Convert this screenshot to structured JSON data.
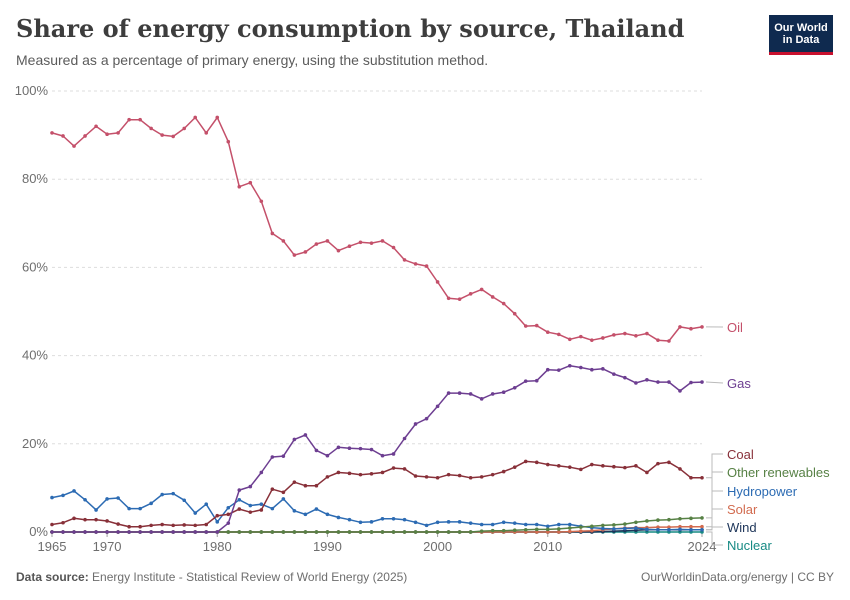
{
  "header": {
    "title": "Share of energy consumption by source, Thailand",
    "subtitle": "Measured as a percentage of primary energy, using the substitution method."
  },
  "logo": {
    "line1": "Our World",
    "line2": "in Data",
    "bg_color": "#0f2a4f",
    "accent_color": "#c8102e"
  },
  "footer": {
    "source_label": "Data source:",
    "source_text": "Energy Institute - Statistical Review of World Energy (2025)",
    "right_text": "OurWorldinData.org/energy | CC BY"
  },
  "chart_data": {
    "type": "line",
    "x_label": "",
    "y_label": "",
    "x_ticks": [
      "1965",
      "1970",
      "1980",
      "1990",
      "2000",
      "2010",
      "2024"
    ],
    "y_ticks": [
      "0%",
      "20%",
      "40%",
      "60%",
      "80%",
      "100%"
    ],
    "xlim": [
      1965,
      2024
    ],
    "ylim": [
      0,
      100
    ],
    "grid": "horizontal dashed",
    "legend": "inline labels at right end of lines",
    "x": [
      1965,
      1966,
      1967,
      1968,
      1969,
      1970,
      1971,
      1972,
      1973,
      1974,
      1975,
      1976,
      1977,
      1978,
      1979,
      1980,
      1981,
      1982,
      1983,
      1984,
      1985,
      1986,
      1987,
      1988,
      1989,
      1990,
      1991,
      1992,
      1993,
      1994,
      1995,
      1996,
      1997,
      1998,
      1999,
      2000,
      2001,
      2002,
      2003,
      2004,
      2005,
      2006,
      2007,
      2008,
      2009,
      2010,
      2011,
      2012,
      2013,
      2014,
      2015,
      2016,
      2017,
      2018,
      2019,
      2020,
      2021,
      2022,
      2023,
      2024
    ],
    "series": [
      {
        "name": "Oil",
        "color": "#c4506a",
        "values": [
          90.5,
          89.8,
          87.5,
          89.8,
          92.0,
          90.2,
          90.5,
          93.5,
          93.5,
          91.5,
          90.0,
          89.7,
          91.5,
          94.0,
          90.5,
          94.0,
          88.5,
          78.3,
          79.2,
          75.0,
          67.7,
          66.0,
          62.8,
          63.5,
          65.3,
          66.0,
          63.8,
          64.8,
          65.7,
          65.5,
          66.0,
          64.5,
          61.7,
          60.8,
          60.3,
          56.7,
          53.0,
          52.8,
          54.0,
          55.0,
          53.3,
          51.8,
          49.5,
          46.7,
          46.8,
          45.3,
          44.8,
          43.7,
          44.3,
          43.5,
          44.0,
          44.7,
          45.0,
          44.5,
          45.0,
          43.5,
          43.3,
          46.5,
          46.1,
          46.5
        ]
      },
      {
        "name": "Gas",
        "color": "#6d3e91",
        "values": [
          0,
          0,
          0,
          0,
          0,
          0,
          0,
          0,
          0,
          0,
          0,
          0,
          0,
          0,
          0,
          0,
          2.0,
          9.5,
          10.3,
          13.5,
          17.0,
          17.2,
          21.0,
          22.0,
          18.5,
          17.3,
          19.2,
          19.0,
          18.9,
          18.7,
          17.3,
          17.7,
          21.2,
          24.5,
          25.7,
          28.5,
          31.5,
          31.5,
          31.3,
          30.2,
          31.3,
          31.7,
          32.7,
          34.2,
          34.3,
          36.8,
          36.7,
          37.7,
          37.3,
          36.8,
          37.0,
          35.8,
          35.0,
          33.8,
          34.5,
          34.0,
          34.0,
          32.0,
          33.9,
          34.0
        ]
      },
      {
        "name": "Coal",
        "color": "#883039",
        "values": [
          1.7,
          2.1,
          3.1,
          2.8,
          2.8,
          2.5,
          1.8,
          1.2,
          1.2,
          1.5,
          1.7,
          1.5,
          1.6,
          1.5,
          1.7,
          3.7,
          4.0,
          5.2,
          4.5,
          5.0,
          9.7,
          9.0,
          11.3,
          10.5,
          10.5,
          12.5,
          13.5,
          13.3,
          13.0,
          13.2,
          13.5,
          14.5,
          14.3,
          12.7,
          12.5,
          12.3,
          13.0,
          12.8,
          12.3,
          12.5,
          13.0,
          13.7,
          14.7,
          16.0,
          15.8,
          15.3,
          15.0,
          14.7,
          14.2,
          15.3,
          15.0,
          14.8,
          14.6,
          15.0,
          13.5,
          15.5,
          15.8,
          14.3,
          12.3,
          12.3
        ]
      },
      {
        "name": "Other renewables",
        "color": "#578145",
        "values": [
          0,
          0,
          0,
          0,
          0,
          0,
          0,
          0,
          0,
          0,
          0,
          0,
          0,
          0,
          0,
          0,
          0,
          0,
          0,
          0,
          0,
          0,
          0,
          0,
          0,
          0,
          0,
          0,
          0,
          0,
          0,
          0,
          0,
          0,
          0,
          0,
          0,
          0,
          0,
          0.2,
          0.3,
          0.3,
          0.4,
          0.5,
          0.6,
          0.6,
          0.7,
          0.9,
          1.1,
          1.3,
          1.5,
          1.6,
          1.8,
          2.2,
          2.5,
          2.7,
          2.8,
          3.0,
          3.1,
          3.2
        ]
      },
      {
        "name": "Hydropower",
        "color": "#2c6bb3",
        "values": [
          7.8,
          8.3,
          9.3,
          7.3,
          5.0,
          7.5,
          7.7,
          5.3,
          5.3,
          6.5,
          8.5,
          8.7,
          7.2,
          4.3,
          6.3,
          2.3,
          5.5,
          7.3,
          6.0,
          6.3,
          5.3,
          7.5,
          4.8,
          4.0,
          5.2,
          4.0,
          3.3,
          2.8,
          2.2,
          2.3,
          3.0,
          3.0,
          2.8,
          2.2,
          1.5,
          2.2,
          2.3,
          2.3,
          2.0,
          1.7,
          1.7,
          2.2,
          2.0,
          1.7,
          1.7,
          1.3,
          1.7,
          1.7,
          1.3,
          1.0,
          0.8,
          0.7,
          0.8,
          0.9,
          0.6,
          0.5,
          0.5,
          0.6,
          0.5,
          0.5
        ]
      },
      {
        "name": "Solar",
        "color": "#d26b4f",
        "values": [
          0,
          0,
          0,
          0,
          0,
          0,
          0,
          0,
          0,
          0,
          0,
          0,
          0,
          0,
          0,
          0,
          0,
          0,
          0,
          0,
          0,
          0,
          0,
          0,
          0,
          0,
          0,
          0,
          0,
          0,
          0,
          0,
          0,
          0,
          0,
          0,
          0,
          0,
          0,
          0,
          0,
          0,
          0,
          0,
          0,
          0,
          0,
          0.1,
          0.2,
          0.3,
          0.5,
          0.7,
          0.9,
          1.0,
          1.0,
          1.1,
          1.1,
          1.2,
          1.2,
          1.2
        ]
      },
      {
        "name": "Wind",
        "color": "#1d3559",
        "values": [
          0,
          0,
          0,
          0,
          0,
          0,
          0,
          0,
          0,
          0,
          0,
          0,
          0,
          0,
          0,
          0,
          0,
          0,
          0,
          0,
          0,
          0,
          0,
          0,
          0,
          0,
          0,
          0,
          0,
          0,
          0,
          0,
          0,
          0,
          0,
          0,
          0,
          0,
          0,
          0,
          0,
          0,
          0,
          0,
          0,
          0,
          0,
          0,
          0,
          0,
          0.1,
          0.2,
          0.3,
          0.4,
          0.5,
          0.5,
          0.5,
          0.5,
          0.5,
          0.5
        ]
      },
      {
        "name": "Nuclear",
        "color": "#178a84",
        "values": [
          0,
          0,
          0,
          0,
          0,
          0,
          0,
          0,
          0,
          0,
          0,
          0,
          0,
          0,
          0,
          0,
          0,
          0,
          0,
          0,
          0,
          0,
          0,
          0,
          0,
          0,
          0,
          0,
          0,
          0,
          0,
          0,
          0,
          0,
          0,
          0,
          0,
          0,
          0,
          0,
          0,
          0,
          0,
          0,
          0,
          0,
          0,
          0,
          0,
          0,
          0,
          0,
          0,
          0,
          0,
          0,
          0,
          0,
          0,
          0
        ]
      }
    ]
  }
}
